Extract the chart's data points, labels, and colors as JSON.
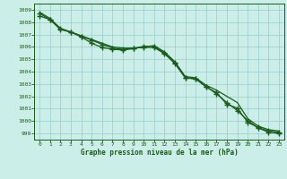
{
  "title": "Graphe pression niveau de la mer (hPa)",
  "bg_color": "#cceee8",
  "grid_color": "#99cccc",
  "line_color": "#1a5c1a",
  "spine_color": "#1a5c1a",
  "xlim": [
    -0.5,
    23.5
  ],
  "ylim": [
    998.5,
    1009.5
  ],
  "yticks": [
    999,
    1000,
    1001,
    1002,
    1003,
    1004,
    1005,
    1006,
    1007,
    1008,
    1009
  ],
  "xticks": [
    0,
    1,
    2,
    3,
    4,
    5,
    6,
    7,
    8,
    9,
    10,
    11,
    12,
    13,
    14,
    15,
    16,
    17,
    18,
    19,
    20,
    21,
    22,
    23
  ],
  "line_smooth": [
    1008.8,
    1008.3,
    1007.5,
    1007.2,
    1006.9,
    1006.6,
    1006.3,
    1006.0,
    1005.9,
    1005.9,
    1006.0,
    1006.1,
    1005.6,
    1004.8,
    1003.6,
    1003.5,
    1002.9,
    1002.5,
    1002.0,
    1001.5,
    1000.2,
    999.6,
    999.3,
    999.2
  ],
  "line_marker1": [
    1008.5,
    1008.2,
    1007.4,
    1007.2,
    1006.8,
    1006.3,
    1005.95,
    1005.8,
    1005.75,
    1005.85,
    1006.05,
    1006.05,
    1005.5,
    1004.7,
    1003.5,
    1003.4,
    1002.8,
    1002.2,
    1001.5,
    1000.85,
    1000.05,
    999.45,
    999.1,
    999.0
  ],
  "line_marker2": [
    1008.7,
    1008.2,
    1007.45,
    1007.2,
    1006.85,
    1006.55,
    1006.2,
    1005.9,
    1005.8,
    1005.9,
    1005.95,
    1005.95,
    1005.45,
    1004.65,
    1003.5,
    1003.42,
    1002.75,
    1002.3,
    1001.35,
    1001.05,
    999.9,
    999.48,
    999.2,
    999.1
  ]
}
